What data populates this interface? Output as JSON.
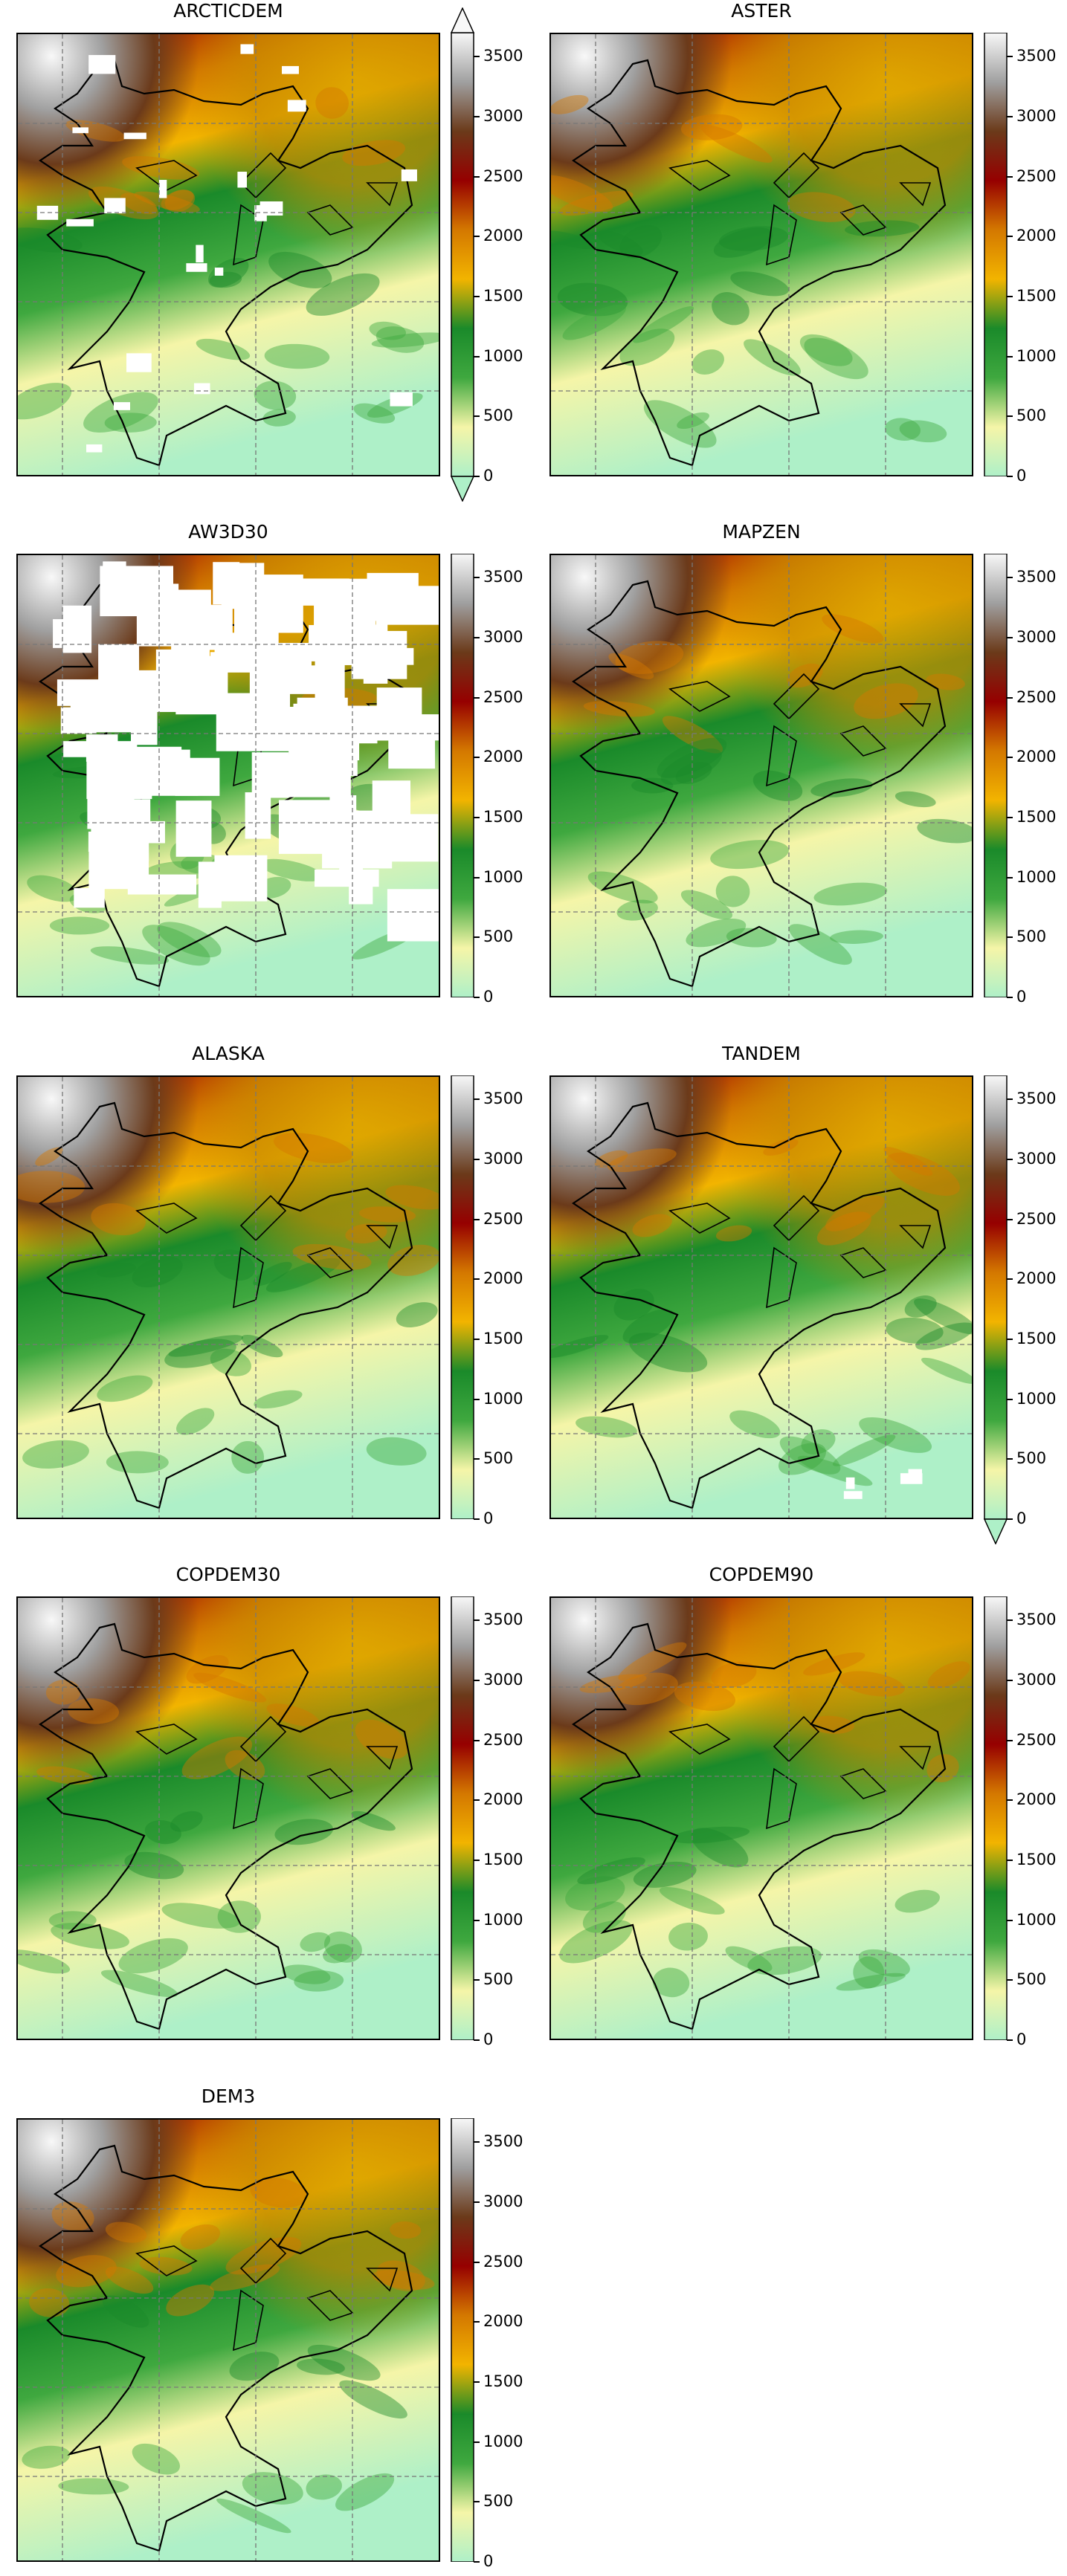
{
  "figure": {
    "colormap": [
      "#aef0c8",
      "#f5f5a8",
      "#3fa83f",
      "#1a8a2a",
      "#f2b400",
      "#d47800",
      "#960000",
      "#6b3a1a",
      "#a0a0a0",
      "#f8f8f8"
    ],
    "colorbar_ticks": [
      "0",
      "500",
      "1000",
      "1500",
      "2000",
      "2500",
      "3000",
      "3500"
    ],
    "panels": [
      {
        "id": "arcticdem",
        "title": "ARCTICDEM",
        "extend": "both",
        "nodata": "scattered"
      },
      {
        "id": "aster",
        "title": "ASTER",
        "extend": "neither",
        "nodata": "none"
      },
      {
        "id": "aw3d30",
        "title": "AW3D30",
        "extend": "neither",
        "nodata": "heavy"
      },
      {
        "id": "mapzen",
        "title": "MAPZEN",
        "extend": "neither",
        "nodata": "none"
      },
      {
        "id": "alaska",
        "title": "ALASKA",
        "extend": "neither",
        "nodata": "none"
      },
      {
        "id": "tandem",
        "title": "TANDEM",
        "extend": "min",
        "nodata": "few"
      },
      {
        "id": "copdem30",
        "title": "COPDEM30",
        "extend": "neither",
        "nodata": "none"
      },
      {
        "id": "copdem90",
        "title": "COPDEM90",
        "extend": "neither",
        "nodata": "none"
      },
      {
        "id": "dem3",
        "title": "DEM3",
        "extend": "neither",
        "nodata": "none"
      }
    ]
  }
}
